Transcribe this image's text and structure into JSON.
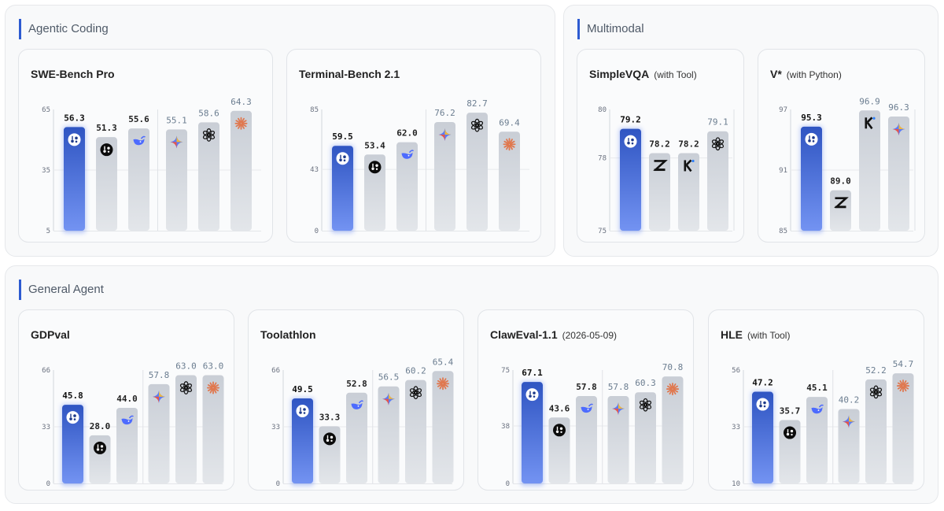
{
  "sections": [
    {
      "title": "Agentic Coding"
    },
    {
      "title": "Multimodal"
    },
    {
      "title": "General Agent"
    }
  ],
  "colors": {
    "highlight_top": "#2f55c2",
    "highlight_bottom": "#7393f2",
    "bar_gray_top": "#c9ced6",
    "bar_gray_bottom": "#e3e6ea",
    "accent": "#2d5bd1"
  },
  "chart_data": [
    {
      "type": "bar",
      "title": "SWE-Bench Pro",
      "subtitle": "",
      "yticks": [
        65,
        35,
        5
      ],
      "ylim": [
        5,
        65
      ],
      "values": [
        56.3,
        51.3,
        55.6,
        55.1,
        58.6,
        64.3
      ],
      "icons": [
        "highlight-model-icon",
        "dark-model-icon",
        "whale-icon",
        "gemini-icon",
        "openai-icon",
        "claude-icon"
      ]
    },
    {
      "type": "bar",
      "title": "Terminal-Bench 2.1",
      "subtitle": "",
      "yticks": [
        85,
        43,
        0
      ],
      "ylim": [
        0,
        85
      ],
      "values": [
        59.5,
        53.4,
        62.0,
        76.2,
        82.7,
        69.4
      ],
      "icons": [
        "highlight-model-icon",
        "dark-model-icon",
        "whale-icon",
        "gemini-icon",
        "openai-icon",
        "claude-icon"
      ]
    },
    {
      "type": "bar",
      "title": "SimpleVQA",
      "subtitle": "(with Tool)",
      "yticks": [
        80,
        78,
        75
      ],
      "ylim": [
        75,
        80
      ],
      "values": [
        79.2,
        78.2,
        78.2,
        79.1
      ],
      "icons": [
        "highlight-model-icon",
        "zhipu-icon",
        "kimi-icon",
        "openai-icon"
      ]
    },
    {
      "type": "bar",
      "title": "V*",
      "subtitle": "(with Python)",
      "yticks": [
        97,
        91,
        85
      ],
      "ylim": [
        85,
        97
      ],
      "values": [
        95.3,
        89.0,
        96.9,
        96.3
      ],
      "icons": [
        "highlight-model-icon",
        "zhipu-icon",
        "kimi-icon",
        "gemini-icon"
      ]
    },
    {
      "type": "bar",
      "title": "GDPval",
      "subtitle": "",
      "yticks": [
        66,
        33,
        0
      ],
      "ylim": [
        0,
        66
      ],
      "values": [
        45.8,
        28.0,
        44.0,
        57.8,
        63.0,
        63.0
      ],
      "icons": [
        "highlight-model-icon",
        "dark-model-icon",
        "whale-icon",
        "gemini-icon",
        "openai-icon",
        "claude-icon"
      ]
    },
    {
      "type": "bar",
      "title": "Toolathlon",
      "subtitle": "",
      "yticks": [
        66,
        33,
        0
      ],
      "ylim": [
        0,
        66
      ],
      "values": [
        49.5,
        33.3,
        52.8,
        56.5,
        60.2,
        65.4
      ],
      "icons": [
        "highlight-model-icon",
        "dark-model-icon",
        "whale-icon",
        "gemini-icon",
        "openai-icon",
        "claude-icon"
      ]
    },
    {
      "type": "bar",
      "title": "ClawEval-1.1",
      "subtitle": "(2026-05-09)",
      "yticks": [
        75,
        38,
        0
      ],
      "ylim": [
        0,
        75
      ],
      "values": [
        67.1,
        43.6,
        57.8,
        57.8,
        60.3,
        70.8
      ],
      "icons": [
        "highlight-model-icon",
        "dark-model-icon",
        "whale-icon",
        "gemini-icon",
        "openai-icon",
        "claude-icon"
      ]
    },
    {
      "type": "bar",
      "title": "HLE",
      "subtitle": "(with Tool)",
      "yticks": [
        56,
        33,
        10
      ],
      "ylim": [
        10,
        56
      ],
      "values": [
        47.2,
        35.7,
        45.1,
        40.2,
        52.2,
        54.7
      ],
      "icons": [
        "highlight-model-icon",
        "dark-model-icon",
        "whale-icon",
        "gemini-icon",
        "openai-icon",
        "claude-icon"
      ]
    }
  ]
}
